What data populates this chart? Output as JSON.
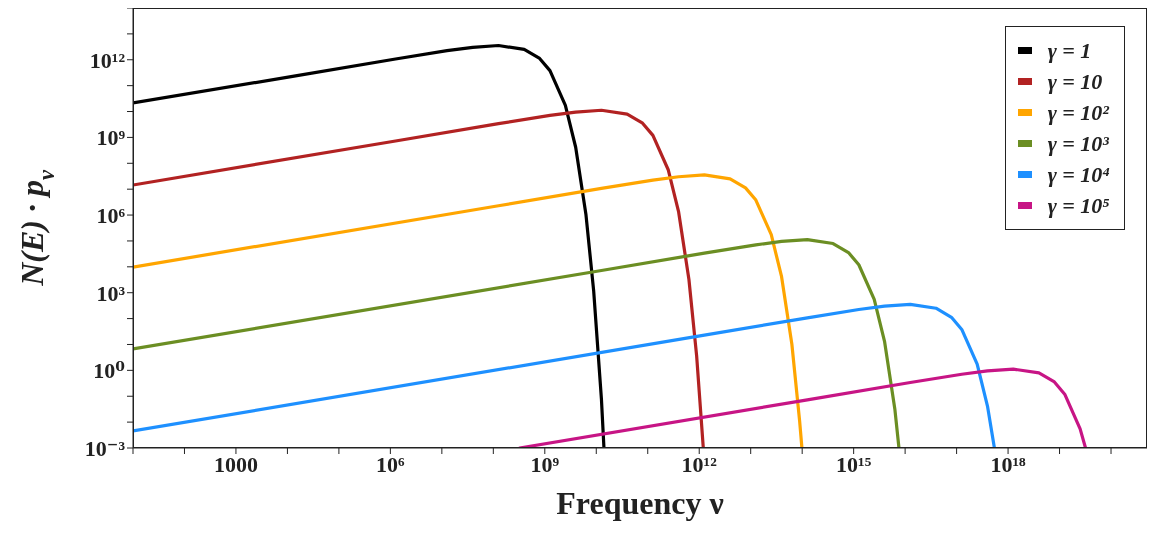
{
  "chart_data": {
    "type": "line",
    "xlabel": "Frequency ν",
    "ylabel": "N(E) · p$_{ν}$",
    "log": "xy",
    "legend": "top right",
    "xlim": [
      10,
      5e+20
    ],
    "ylim": [
      0.001,
      100000000000000.0
    ],
    "xticks": [
      {
        "value": 10,
        "label": null
      },
      {
        "value": 100,
        "label": null
      },
      1000,
      {
        "value": 10000.0,
        "label": null
      },
      {
        "value": 100000.0,
        "label": null
      },
      {
        "value": 1000000.0,
        "label": "10⁶"
      },
      {
        "value": 10000000.0,
        "label": null
      },
      {
        "value": 100000000.0,
        "label": null
      },
      {
        "value": 1000000000.0,
        "label": "10⁹"
      },
      {
        "value": 10000000000.0,
        "label": null
      },
      {
        "value": 100000000000.0,
        "label": null
      },
      {
        "value": 1000000000000.0,
        "label": "10¹²"
      },
      {
        "value": 10000000000000.0,
        "label": null
      },
      {
        "value": 100000000000000.0,
        "label": null
      },
      {
        "value": 1000000000000000.0,
        "label": "10¹⁵"
      },
      {
        "value": 1e+16,
        "label": null
      },
      {
        "value": 1e+17,
        "label": null
      },
      {
        "value": 1e+18,
        "label": "10¹⁸"
      },
      {
        "value": 1e+19,
        "label": null
      },
      {
        "value": 1e+20,
        "label": null
      }
    ],
    "yticks": [
      {
        "value": 0.001,
        "label": "10⁻³"
      },
      {
        "value": 0.01,
        "label": null
      },
      {
        "value": 0.1,
        "label": null
      },
      {
        "value": 1,
        "label": "10⁰"
      },
      {
        "value": 10,
        "label": null
      },
      {
        "value": 100,
        "label": null
      },
      {
        "value": 1000,
        "label": "10³"
      },
      {
        "value": 10000.0,
        "label": null
      },
      {
        "value": 100000.0,
        "label": null
      },
      {
        "value": 1000000.0,
        "label": "10⁶"
      },
      {
        "value": 10000000.0,
        "label": null
      },
      {
        "value": 100000000.0,
        "label": null
      },
      {
        "value": 1000000000.0,
        "label": "10⁹"
      },
      {
        "value": 10000000000.0,
        "label": null
      },
      {
        "value": 100000000000.0,
        "label": null
      },
      {
        "value": 1000000000000.0,
        "label": "10¹²"
      },
      {
        "value": 10000000000000.0,
        "label": null
      },
      {
        "value": 100000000000000.0,
        "label": null
      }
    ],
    "series": [
      {
        "name": "γ = 1",
        "color": "#000000",
        "x": [
          10,
          12600.0,
          1260000.0,
          12600000.0,
          39800000.0,
          126000000.0,
          398000000.0,
          794000000.0,
          1260000000.0,
          2510000000.0,
          3980000000.0,
          6310000000.0,
          8910000000.0,
          12600000000.0,
          14100000000.0
        ],
        "values": [
          21400000000.0,
          229000000000.0,
          1070000000000.0,
          2240000000000.0,
          3020000000000.0,
          3550000000000.0,
          2510000000000.0,
          1120000000000.0,
          380000000000.0,
          17400000000.0,
          417000000.0,
          1020000.0,
          1150.0,
          0.0759,
          0.001
        ]
      },
      {
        "name": "γ = 10",
        "color": "#b22222",
        "x": [
          10,
          1260000.0,
          126000000.0,
          1260000000.0,
          3980000000.0,
          12600000000.0,
          39800000000.0,
          79400000000.0,
          126000000000.0,
          251000000000.0,
          398000000000.0,
          631000000000.0,
          891000000000.0,
          1200000000000.0
        ],
        "values": [
          14500000.0,
          724000000.0,
          3390000000.0,
          7080000000.0,
          9550000000.0,
          11200000000.0,
          7940000000.0,
          3550000000.0,
          1200000000.0,
          55000000.0,
          1320000.0,
          3240.0,
          3.63,
          0.001
        ]
      },
      {
        "name": "γ = 10²",
        "color": "#ffa500",
        "x": [
          10,
          126000000.0,
          12600000000.0,
          126000000000.0,
          398000000000.0,
          1260000000000.0,
          3980000000000.0,
          7940000000000.0,
          12600000000000.0,
          25100000000000.0,
          39800000000000.0,
          63100000000000.0,
          89100000000000.0,
          98900000000000.0
        ],
        "values": [
          9770.0,
          2290000.0,
          10700000.0,
          22400000.0,
          30200000.0,
          35500000.0,
          25100000.0,
          11200000.0,
          3800000.0,
          174000.0,
          4170.0,
          10.2,
          0.0115,
          0.001
        ]
      },
      {
        "name": "γ = 10³",
        "color": "#6b8e23",
        "x": [
          10,
          12600000000.0,
          1260000000000.0,
          12600000000000.0,
          39800000000000.0,
          126000000000000.0,
          398000000000000.0,
          794000000000000.0,
          1260000000000000.0,
          2510000000000000.0,
          3980000000000000.0,
          6310000000000000.0,
          7590000000000000.0
        ],
        "values": [
          6.76,
          7240.0,
          33900.0,
          70800.0,
          95500.0,
          112000.0,
          79400.0,
          35500.0,
          12000.0,
          550,
          13.2,
          0.0324,
          0.001
        ]
      },
      {
        "name": "γ = 10⁴",
        "color": "#1e90ff",
        "x": [
          10,
          1260000000000.0,
          126000000000000.0,
          1260000000000000.0,
          3980000000000000.0,
          1.26e+16,
          3.98e+16,
          7.94e+16,
          1.26e+17,
          2.51e+17,
          3.98e+17,
          5.43e+17
        ],
        "values": [
          0.00457,
          22.9,
          107,
          224,
          302,
          355,
          251,
          112,
          38,
          1.74,
          0.0417,
          0.001
        ]
      },
      {
        "name": "γ = 10⁵",
        "color": "#c71585",
        "x": [
          324000000.0,
          126000000000000.0,
          1.26e+16,
          1.26e+17,
          3.98e+17,
          1.26e+18,
          3.98e+18,
          7.94e+18,
          1.26e+19,
          2.51e+19,
          3.2e+19
        ],
        "values": [
          0.001,
          0.0724,
          0.339,
          0.708,
          0.955,
          1.12,
          0.794,
          0.355,
          0.12,
          0.0055,
          0.001
        ]
      }
    ]
  }
}
